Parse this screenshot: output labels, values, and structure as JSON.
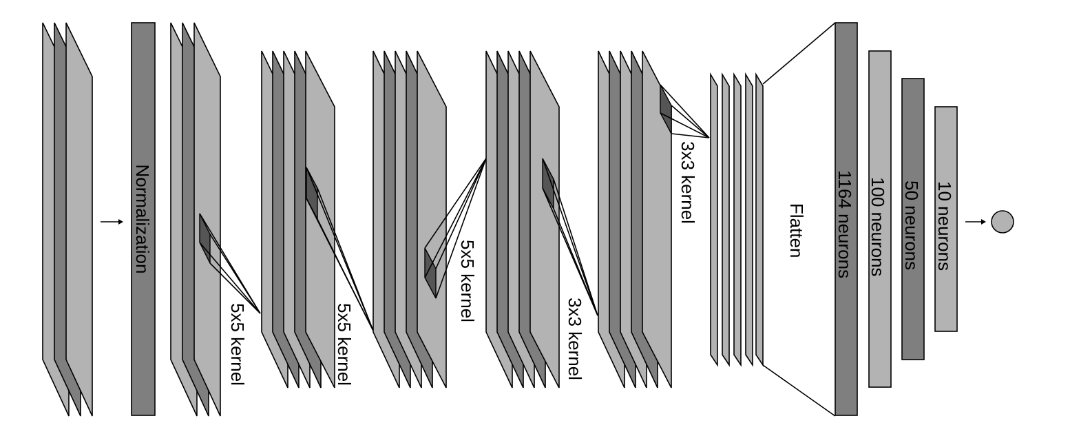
{
  "diagram": {
    "input_to_norm_arrow": "arrow-right",
    "normalization_label": "Normalization",
    "conv1_kernel_label": "5x5 kernel",
    "conv2_kernel_label": "5x5 kernel",
    "conv3_kernel_label": "5x5 kernel",
    "conv4_kernel_label": "3x3 kernel",
    "conv5_kernel_label": "3x3 kernel",
    "flatten_label": "Flatten",
    "fc1_label": "1164 neurons",
    "fc2_label": "100 neurons",
    "fc3_label": "50 neurons",
    "fc4_label": "10 neurons",
    "output_arrow": "arrow-right",
    "output_node": "circle",
    "colors": {
      "light_plane": "#b3b3b3",
      "dark_plane": "#7f7f7f",
      "kernel": "#555555",
      "stroke": "#000000",
      "background": "#ffffff"
    }
  }
}
